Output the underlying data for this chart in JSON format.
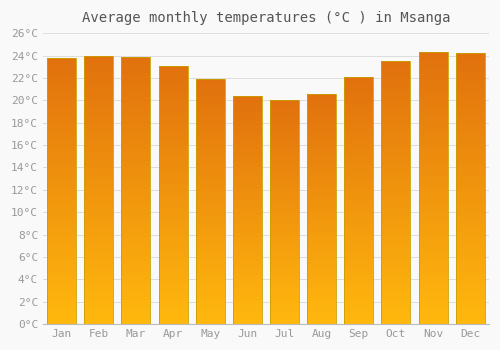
{
  "months": [
    "Jan",
    "Feb",
    "Mar",
    "Apr",
    "May",
    "Jun",
    "Jul",
    "Aug",
    "Sep",
    "Oct",
    "Nov",
    "Dec"
  ],
  "values": [
    23.8,
    24.0,
    23.9,
    23.1,
    21.9,
    20.4,
    20.0,
    20.6,
    22.1,
    23.5,
    24.3,
    24.2
  ],
  "bar_color_top": "#FFA020",
  "bar_color_bottom": "#FFD060",
  "bar_edge_color": "#C8A000",
  "title": "Average monthly temperatures (°C ) in Msanga",
  "ylim": [
    0,
    26
  ],
  "ytick_step": 2,
  "background_color": "#f9f9f9",
  "plot_bg_color": "#f9f9f9",
  "grid_color": "#dddddd",
  "title_fontsize": 10,
  "tick_fontsize": 8,
  "tick_color": "#999999",
  "title_color": "#555555"
}
